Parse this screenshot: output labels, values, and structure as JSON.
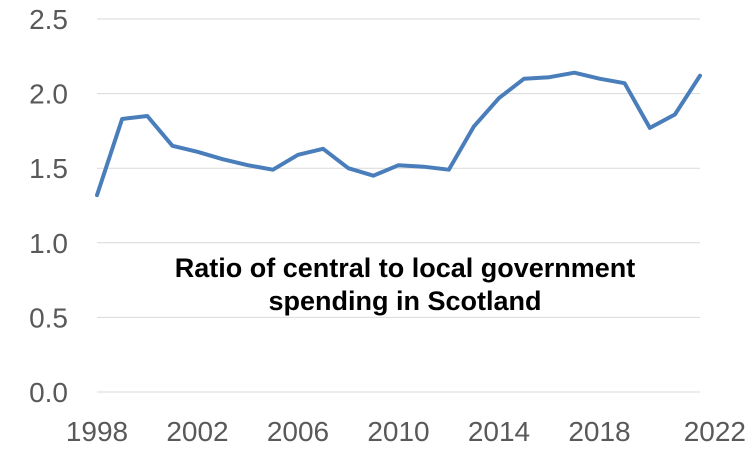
{
  "chart_data": {
    "type": "line",
    "title_lines": [
      "Ratio of central to local government",
      "spending in Scotland"
    ],
    "xlabel": "",
    "ylabel": "",
    "xlim": [
      1998,
      2022
    ],
    "ylim": [
      0,
      2.5
    ],
    "x_ticks": [
      1998,
      2002,
      2006,
      2010,
      2014,
      2018,
      2022
    ],
    "y_ticks": [
      0.0,
      0.5,
      1.0,
      1.5,
      2.0,
      2.5
    ],
    "y_tick_labels": [
      "0.0",
      "0.5",
      "1.0",
      "1.5",
      "2.0",
      "2.5"
    ],
    "grid": true,
    "legend": "none",
    "series": [
      {
        "color": "#4a7ebb",
        "x": [
          1998,
          1999,
          2000,
          2001,
          2002,
          2003,
          2004,
          2005,
          2006,
          2007,
          2008,
          2009,
          2010,
          2011,
          2012,
          2013,
          2014,
          2015,
          2016,
          2017,
          2018,
          2019,
          2020,
          2021,
          2022
        ],
        "y": [
          1.32,
          1.83,
          1.85,
          1.65,
          1.61,
          1.56,
          1.52,
          1.49,
          1.59,
          1.63,
          1.5,
          1.45,
          1.52,
          1.51,
          1.49,
          1.78,
          1.97,
          2.1,
          2.11,
          2.14,
          2.1,
          2.07,
          1.77,
          1.86,
          2.12
        ]
      }
    ]
  }
}
